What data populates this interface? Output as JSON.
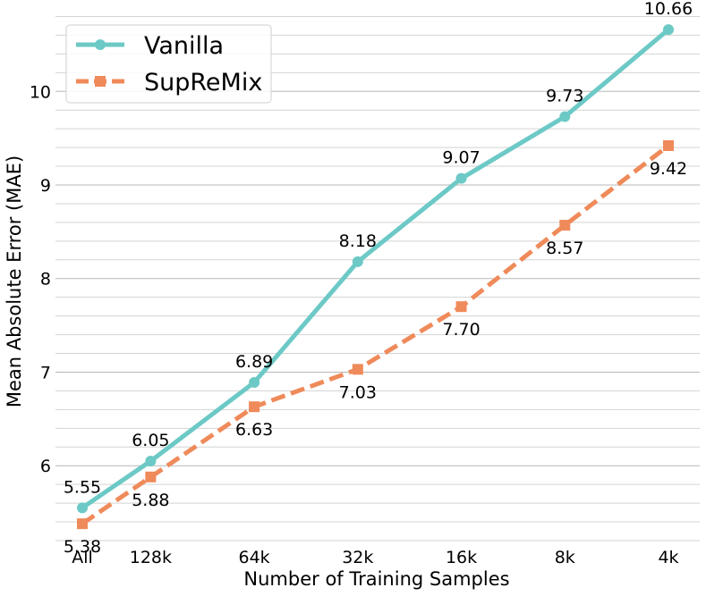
{
  "chart_data": {
    "type": "line",
    "title": "",
    "xlabel": "Number of Training Samples",
    "ylabel": "Mean Absolute Error (MAE)",
    "categories": [
      "All",
      "128k",
      "64k",
      "32k",
      "16k",
      "8k",
      "4k"
    ],
    "x": [
      0,
      0.66,
      1.66,
      2.66,
      3.66,
      4.66,
      5.66
    ],
    "ylim": [
      5.2,
      10.9
    ],
    "yticks": [
      6,
      7,
      8,
      9,
      10
    ],
    "ytick_labels": [
      "6",
      "7",
      "8",
      "9",
      "10"
    ],
    "grid": "horizontal",
    "legend_position": "top-left",
    "series": [
      {
        "name": "Vanilla",
        "values": [
          5.55,
          6.05,
          6.89,
          8.18,
          9.07,
          9.73,
          10.66
        ],
        "labels": [
          "5.55",
          "6.05",
          "6.89",
          "8.18",
          "9.07",
          "9.73",
          "10.66"
        ],
        "color": "#6cc9c6",
        "style": "solid",
        "marker": "circle",
        "label_position": "above"
      },
      {
        "name": "SupReMix",
        "values": [
          5.38,
          5.88,
          6.63,
          7.03,
          7.7,
          8.57,
          9.42
        ],
        "labels": [
          "5.38",
          "5.88",
          "6.63",
          "7.03",
          "7.70",
          "8.57",
          "9.42"
        ],
        "color": "#ef8a5a",
        "style": "dashed",
        "marker": "square",
        "label_position": "below"
      }
    ]
  }
}
